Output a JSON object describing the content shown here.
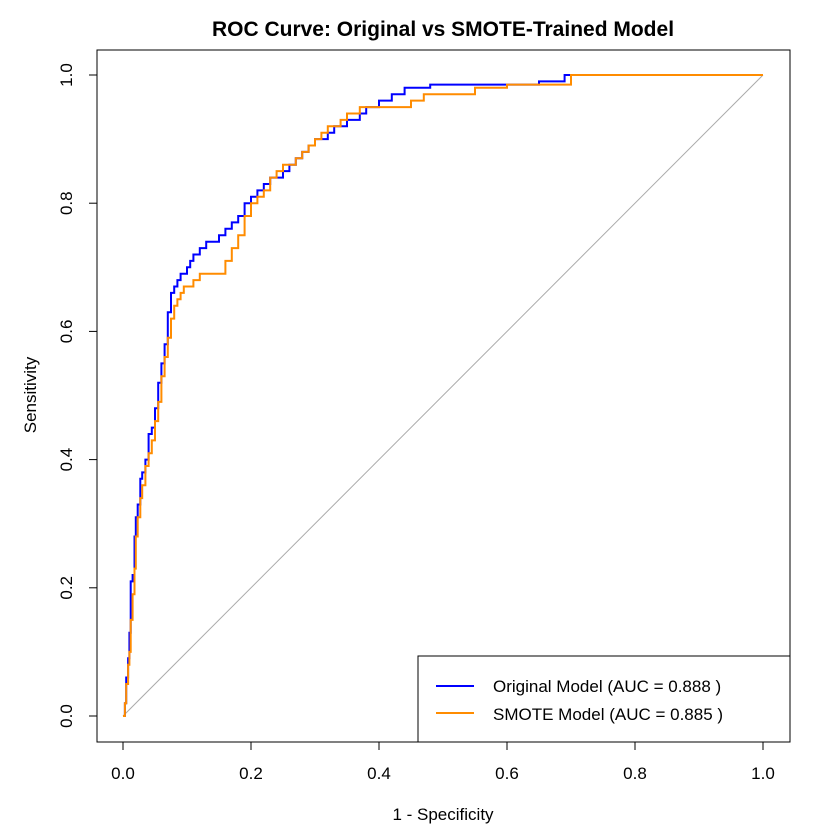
{
  "chart_data": {
    "type": "line",
    "title": "ROC Curve: Original vs SMOTE-Trained Model",
    "xlabel": "1 - Specificity",
    "ylabel": "Sensitivity",
    "xlim": [
      0,
      1
    ],
    "ylim": [
      0,
      1
    ],
    "x_ticks": [
      "0.0",
      "0.2",
      "0.4",
      "0.6",
      "0.8",
      "1.0"
    ],
    "y_ticks": [
      "0.0",
      "0.2",
      "0.4",
      "0.6",
      "0.8",
      "1.0"
    ],
    "grid": false,
    "legend_position": "bottom-right",
    "reference_line": {
      "from": [
        0,
        0
      ],
      "to": [
        1,
        1
      ],
      "color": "#aaaaaa"
    },
    "series": [
      {
        "name": "Original Model (AUC = 0.888 )",
        "color": "#0000ff",
        "x": [
          0,
          0.003,
          0.005,
          0.008,
          0.01,
          0.012,
          0.015,
          0.018,
          0.02,
          0.023,
          0.027,
          0.03,
          0.035,
          0.04,
          0.045,
          0.05,
          0.055,
          0.06,
          0.065,
          0.07,
          0.075,
          0.08,
          0.085,
          0.09,
          0.095,
          0.1,
          0.105,
          0.11,
          0.12,
          0.13,
          0.14,
          0.15,
          0.16,
          0.17,
          0.18,
          0.19,
          0.2,
          0.21,
          0.22,
          0.23,
          0.24,
          0.25,
          0.26,
          0.27,
          0.28,
          0.29,
          0.3,
          0.31,
          0.32,
          0.33,
          0.34,
          0.35,
          0.36,
          0.37,
          0.38,
          0.4,
          0.42,
          0.44,
          0.46,
          0.48,
          0.5,
          0.55,
          0.6,
          0.65,
          0.66,
          0.69,
          0.7,
          0.8,
          0.9,
          1.0
        ],
        "y": [
          0,
          0.02,
          0.06,
          0.09,
          0.13,
          0.21,
          0.22,
          0.28,
          0.31,
          0.33,
          0.37,
          0.38,
          0.4,
          0.44,
          0.45,
          0.48,
          0.52,
          0.55,
          0.58,
          0.63,
          0.66,
          0.67,
          0.68,
          0.69,
          0.69,
          0.7,
          0.71,
          0.72,
          0.73,
          0.74,
          0.74,
          0.75,
          0.76,
          0.77,
          0.78,
          0.8,
          0.81,
          0.82,
          0.83,
          0.84,
          0.84,
          0.85,
          0.86,
          0.87,
          0.88,
          0.89,
          0.9,
          0.9,
          0.91,
          0.92,
          0.92,
          0.93,
          0.93,
          0.94,
          0.95,
          0.96,
          0.97,
          0.98,
          0.98,
          0.985,
          0.985,
          0.985,
          0.985,
          0.99,
          0.99,
          1.0,
          1.0,
          1.0,
          1.0,
          1.0
        ]
      },
      {
        "name": "SMOTE Model (AUC = 0.885 )",
        "color": "#ff8c00",
        "x": [
          0,
          0.003,
          0.005,
          0.008,
          0.01,
          0.012,
          0.015,
          0.018,
          0.02,
          0.023,
          0.027,
          0.03,
          0.035,
          0.04,
          0.045,
          0.05,
          0.055,
          0.06,
          0.065,
          0.07,
          0.075,
          0.08,
          0.085,
          0.09,
          0.095,
          0.1,
          0.11,
          0.12,
          0.14,
          0.15,
          0.16,
          0.17,
          0.18,
          0.19,
          0.2,
          0.21,
          0.22,
          0.23,
          0.24,
          0.25,
          0.26,
          0.27,
          0.28,
          0.29,
          0.3,
          0.31,
          0.32,
          0.33,
          0.34,
          0.35,
          0.36,
          0.37,
          0.4,
          0.45,
          0.47,
          0.5,
          0.55,
          0.58,
          0.6,
          0.65,
          0.69,
          0.7,
          0.8,
          0.9,
          1.0
        ],
        "y": [
          0,
          0.02,
          0.05,
          0.08,
          0.1,
          0.15,
          0.19,
          0.23,
          0.28,
          0.31,
          0.34,
          0.36,
          0.39,
          0.41,
          0.43,
          0.46,
          0.49,
          0.53,
          0.56,
          0.59,
          0.62,
          0.64,
          0.65,
          0.66,
          0.67,
          0.67,
          0.68,
          0.69,
          0.69,
          0.69,
          0.71,
          0.73,
          0.75,
          0.78,
          0.8,
          0.81,
          0.82,
          0.84,
          0.85,
          0.86,
          0.86,
          0.87,
          0.88,
          0.89,
          0.9,
          0.91,
          0.92,
          0.92,
          0.93,
          0.94,
          0.94,
          0.95,
          0.95,
          0.96,
          0.97,
          0.97,
          0.98,
          0.98,
          0.985,
          0.985,
          0.985,
          1.0,
          1.0,
          1.0,
          1.0
        ]
      }
    ]
  }
}
